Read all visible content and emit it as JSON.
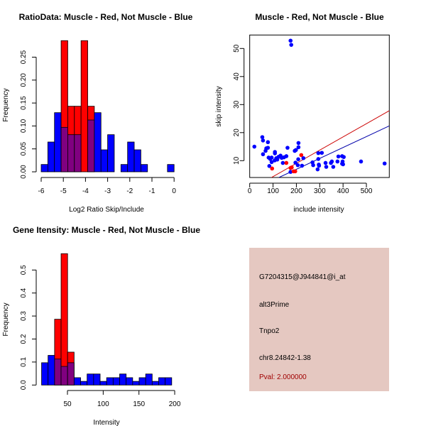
{
  "chart_data": [
    {
      "type": "histogram",
      "title": "RatioData: Muscle - Red, Not Muscle - Blue",
      "xlabel": "Log2 Ratio Skip/Include",
      "ylabel": "Frequency",
      "xticks": [
        "-6",
        "-5",
        "-4",
        "-3",
        "-2",
        "-1",
        "0"
      ],
      "yticks": [
        "0.00",
        "0.05",
        "0.10",
        "0.15",
        "0.20",
        "0.25"
      ],
      "xlim": [
        -6,
        0
      ],
      "ylim": [
        0,
        0.29
      ],
      "bin_start": -6,
      "bin_width": 0.3,
      "series": [
        {
          "name": "Not Muscle",
          "color": "#0000ff",
          "values": [
            0.016,
            0.065,
            0.129,
            0.097,
            0.081,
            0.081,
            0,
            0.113,
            0.129,
            0.048,
            0.081,
            0,
            0.016,
            0.065,
            0.048,
            0.016,
            0,
            0,
            0,
            0.016
          ]
        },
        {
          "name": "Muscle",
          "color": "#ff0000",
          "values": [
            0,
            0,
            0,
            0.286,
            0.143,
            0.143,
            0.286,
            0.143,
            0,
            0,
            0,
            0,
            0,
            0,
            0,
            0,
            0,
            0,
            0,
            0
          ]
        }
      ],
      "overlap_color": "#800080"
    },
    {
      "type": "scatter",
      "title": "Muscle - Red, Not Muscle - Blue",
      "xlabel": "include intensity",
      "ylabel": "skip intensity",
      "xticks": [
        "0",
        "100",
        "200",
        "300",
        "400",
        "500"
      ],
      "yticks": [
        "10",
        "20",
        "30",
        "40",
        "50"
      ],
      "xlim": [
        0,
        598
      ],
      "ylim": [
        4,
        54.8
      ],
      "series": [
        {
          "name": "Not Muscle",
          "color": "#0000ff",
          "points": [
            [
              20,
              15
            ],
            [
              54,
              18.4
            ],
            [
              57,
              17.2
            ],
            [
              57,
              12.3
            ],
            [
              68,
              13.5
            ],
            [
              71,
              14.4
            ],
            [
              78,
              16.6
            ],
            [
              78,
              14.6
            ],
            [
              81,
              11.1
            ],
            [
              84,
              8.1
            ],
            [
              88,
              10.6
            ],
            [
              94,
              11.1
            ],
            [
              94,
              9.5
            ],
            [
              107,
              10.1
            ],
            [
              108,
              13.1
            ],
            [
              108,
              12.6
            ],
            [
              114,
              10.9
            ],
            [
              118,
              10.4
            ],
            [
              124,
              11.4
            ],
            [
              132,
              11.8
            ],
            [
              137,
              11
            ],
            [
              142,
              9.2
            ],
            [
              147,
              11.2
            ],
            [
              157,
              11.6
            ],
            [
              162,
              14.6
            ],
            [
              175,
              52.8
            ],
            [
              178,
              51.3
            ],
            [
              175,
              6
            ],
            [
              193,
              13.5
            ],
            [
              198,
              13.8
            ],
            [
              196,
              9.3
            ],
            [
              206,
              8.4
            ],
            [
              208,
              10.5
            ],
            [
              209,
              16.3
            ],
            [
              209,
              14.8
            ],
            [
              224,
              8.2
            ],
            [
              230,
              10.9
            ],
            [
              269,
              9.4
            ],
            [
              272,
              8.4
            ],
            [
              291,
              6.9
            ],
            [
              294,
              10.6
            ],
            [
              294,
              12.7
            ],
            [
              296,
              8.6
            ],
            [
              297,
              8.2
            ],
            [
              309,
              12.8
            ],
            [
              325,
              9.2
            ],
            [
              328,
              7.8
            ],
            [
              348,
              9.2
            ],
            [
              352,
              9.7
            ],
            [
              358,
              7.8
            ],
            [
              376,
              9.7
            ],
            [
              380,
              11.5
            ],
            [
              396,
              11.6
            ],
            [
              396,
              8.9
            ],
            [
              398,
              9.7
            ],
            [
              403,
              11.3
            ],
            [
              400,
              8.7
            ],
            [
              477,
              9.7
            ],
            [
              578,
              9
            ]
          ]
        },
        {
          "name": "Muscle",
          "color": "#ff0000",
          "points": [
            [
              96,
              7.2
            ],
            [
              157,
              9.2
            ],
            [
              175,
              7.4
            ],
            [
              180,
              7.6
            ],
            [
              188,
              6.2
            ],
            [
              195,
              6.2
            ],
            [
              221,
              12
            ]
          ]
        }
      ],
      "lines": [
        {
          "name": "Muscle fit",
          "color": "#cc0000",
          "from": [
            93,
            4
          ],
          "to": [
            598,
            27.8
          ]
        },
        {
          "name": "Not Muscle fit",
          "color": "#0000aa",
          "from": [
            125,
            4
          ],
          "to": [
            598,
            22.4
          ]
        }
      ]
    },
    {
      "type": "histogram",
      "title": "Gene Itensity: Muscle - Red, Not Muscle - Blue",
      "xlabel": "Intensity",
      "ylabel": "Frequency",
      "xticks": [
        "50",
        "100",
        "150",
        "200"
      ],
      "yticks": [
        "0.0",
        "0.1",
        "0.2",
        "0.3",
        "0.4",
        "0.5"
      ],
      "xlim": [
        50,
        200
      ],
      "ylim": [
        0,
        0.58
      ],
      "bin_start": 13.8,
      "bin_width": 9.1,
      "series": [
        {
          "name": "Not Muscle",
          "color": "#0000ff",
          "values": [
            0.097,
            0.129,
            0.113,
            0.081,
            0.097,
            0.032,
            0.016,
            0.048,
            0.048,
            0.016,
            0.032,
            0.032,
            0.048,
            0.032,
            0.016,
            0.032,
            0.048,
            0.016,
            0.032,
            0.032
          ]
        },
        {
          "name": "Muscle",
          "color": "#ff0000",
          "values": [
            0,
            0,
            0.286,
            0.571,
            0.143,
            0,
            0,
            0,
            0,
            0,
            0,
            0,
            0,
            0,
            0,
            0,
            0,
            0,
            0,
            0
          ]
        }
      ],
      "overlap_color": "#800080"
    }
  ],
  "info": {
    "probe": "G7204315@J944841@i_at",
    "event_type": "alt3Prime",
    "gene": "Tnpo2",
    "location": "chr8.24842-1.38",
    "pval": "Pval: 2.000000",
    "background": "#e5c8c1",
    "pval_color": "#a00000"
  }
}
